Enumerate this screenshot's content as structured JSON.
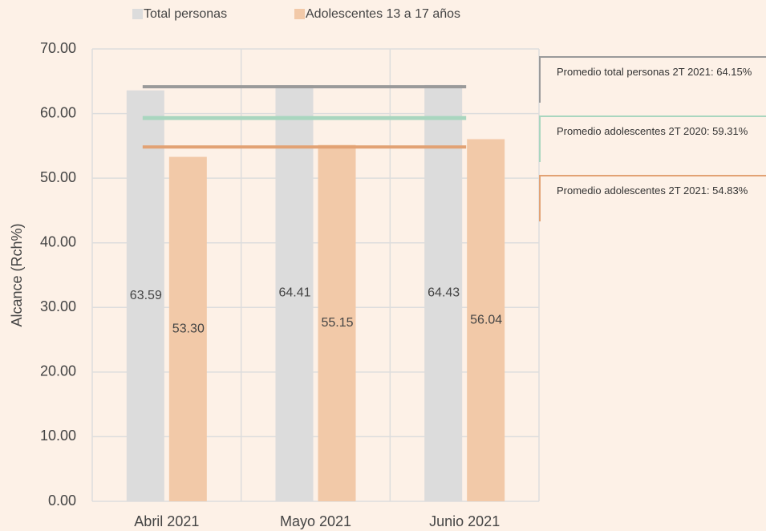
{
  "chart_data": {
    "type": "bar",
    "categories": [
      "Abril 2021",
      "Mayo 2021",
      "Junio 2021"
    ],
    "series": [
      {
        "name": "Total personas",
        "color": "#dcdcdc",
        "values": [
          63.59,
          64.41,
          64.43
        ],
        "value_labels": [
          "63.59",
          "64.41",
          "64.43"
        ]
      },
      {
        "name": "Adolescentes 13 a 17 años",
        "color": "#f2c9a8",
        "values": [
          53.3,
          55.15,
          56.04
        ],
        "value_labels": [
          "53.30",
          "55.15",
          "56.04"
        ]
      }
    ],
    "y_axis_label": "Alcance (Rch%)",
    "ylim": [
      0,
      70
    ],
    "yticks": [
      {
        "value": 0,
        "label": "0.00"
      },
      {
        "value": 10,
        "label": "10.00"
      },
      {
        "value": 20,
        "label": "20.00"
      },
      {
        "value": 30,
        "label": "30.00"
      },
      {
        "value": 40,
        "label": "40.00"
      },
      {
        "value": 50,
        "label": "50.00"
      },
      {
        "value": 60,
        "label": "60.00"
      },
      {
        "value": 70,
        "label": "70.00"
      }
    ],
    "grid": true,
    "legend": "top",
    "reference_lines": [
      {
        "value": 64.15,
        "label": "Promedio total personas 2T 2021: 64.15%",
        "color": "#9a9a9a"
      },
      {
        "value": 59.31,
        "label": "Promedio adolescentes 2T 2020: 59.31%",
        "color": "#a9d6bf"
      },
      {
        "value": 54.83,
        "label": "Promedio adolescentes 2T 2021: 54.83%",
        "color": "#e2a274"
      }
    ]
  }
}
